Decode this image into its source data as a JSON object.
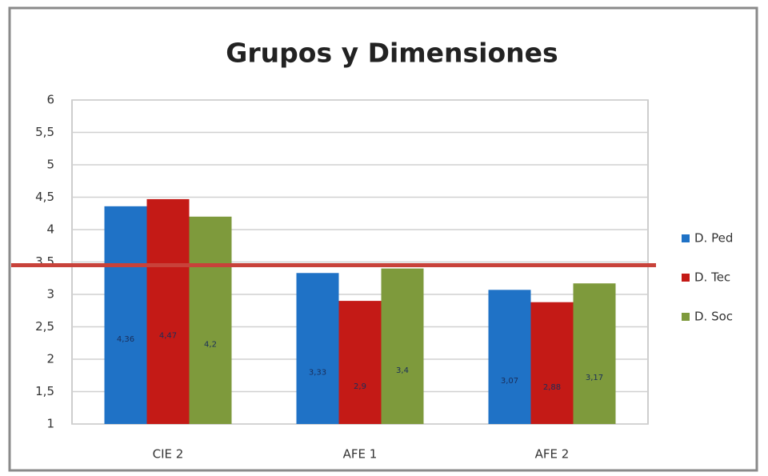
{
  "chart_data": {
    "type": "bar",
    "title": "Grupos y Dimensiones",
    "categories": [
      "CIE 2",
      "AFE 1",
      "AFE 2"
    ],
    "series": [
      {
        "name": "D. Ped",
        "color": "#1f72c6",
        "values": [
          4.36,
          3.33,
          3.07
        ],
        "value_labels": [
          "4,36",
          "3,33",
          "3,07"
        ]
      },
      {
        "name": "D. Tec",
        "color": "#c41a16",
        "values": [
          4.47,
          2.9,
          2.88
        ],
        "value_labels": [
          "4,47",
          "2,9",
          "2,88"
        ]
      },
      {
        "name": "D. Soc",
        "color": "#7e9a3c",
        "values": [
          4.2,
          3.4,
          3.17
        ],
        "value_labels": [
          "4,2",
          "3,4",
          "3,17"
        ]
      }
    ],
    "reference_line": {
      "value": 3.45,
      "color": "#c8423a"
    },
    "ylim": [
      1,
      6
    ],
    "yticks": [
      1,
      {
        "value": 1.5,
        "label": "1,5"
      },
      2,
      {
        "value": 2.5,
        "label": "2,5"
      },
      3,
      {
        "value": 3.5,
        "label": "3,5"
      },
      4,
      {
        "value": 4.5,
        "label": "4,5"
      },
      5,
      {
        "value": 5.5,
        "label": "5,5"
      },
      6
    ],
    "grid": true,
    "legend": "right"
  }
}
